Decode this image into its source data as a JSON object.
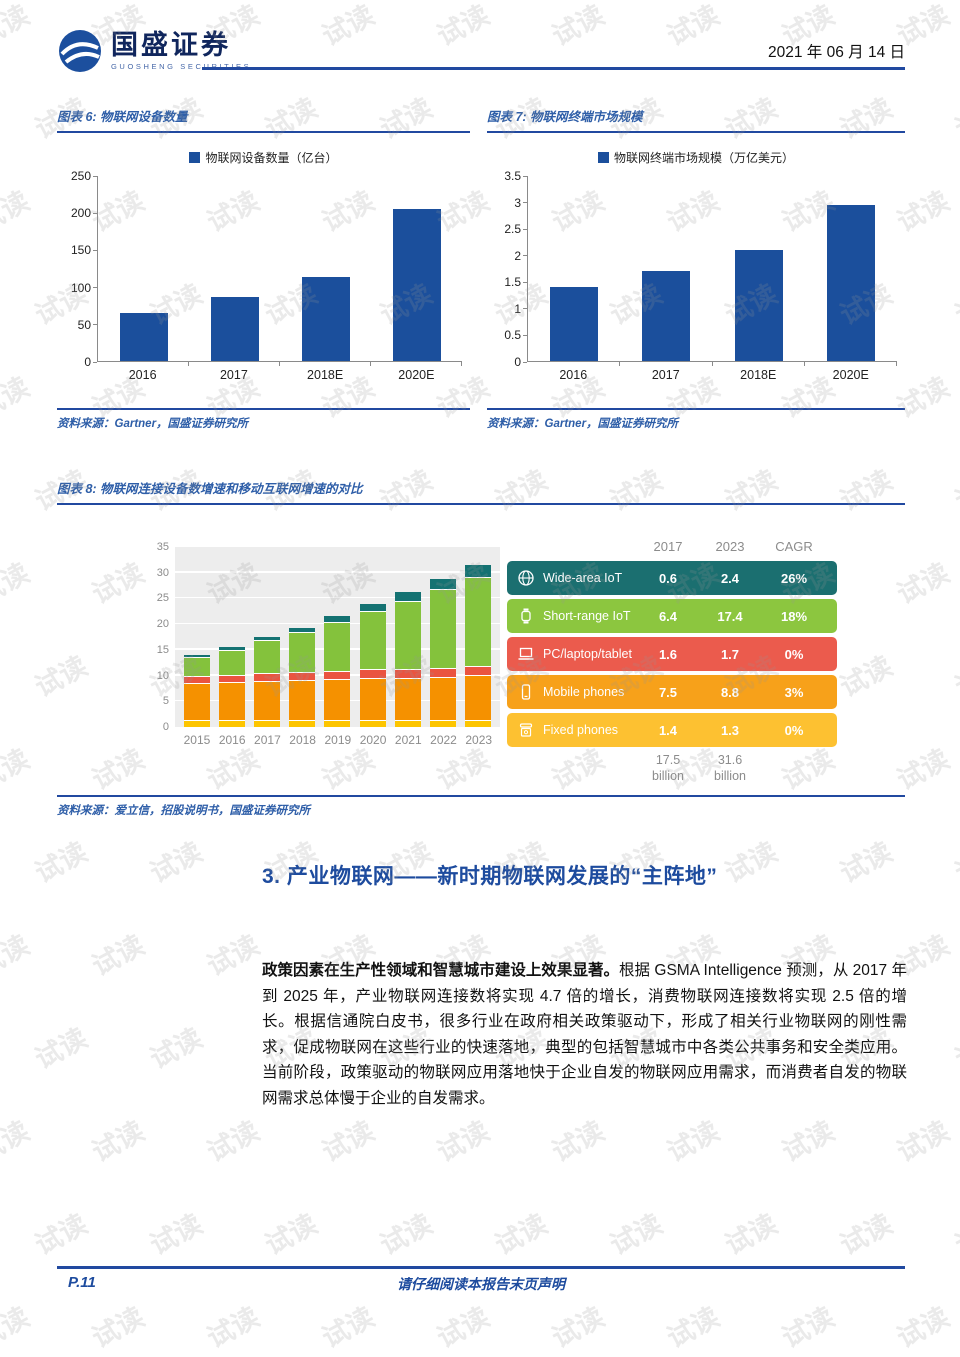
{
  "watermark": {
    "text": "试读"
  },
  "header": {
    "logo_cn": "国盛证券",
    "logo_en": "GUOSHENG SECURITIES",
    "date": "2021 年 06 月 14 日"
  },
  "fig6": {
    "caption": "图表 6: 物联网设备数量",
    "legend": "物联网设备数量（亿台）",
    "source": "资料来源：Gartner，国盛证券研究所"
  },
  "fig7": {
    "caption": "图表 7: 物联网终端市场规模",
    "legend": "物联网终端市场规模（万亿美元）",
    "source": "资料来源：Gartner，国盛证券研究所"
  },
  "fig8": {
    "caption": "图表 8: 物联网连接设备数增速和移动互联网增速的对比",
    "source": "资料来源：爱立信，招股说明书，国盛证券研究所"
  },
  "section": {
    "heading": "3. 产业物联网——新时期物联网发展的“主阵地”"
  },
  "paragraph": {
    "lead": "政策因素在生产性领域和智慧城市建设上效果显著。",
    "body": "根据 GSMA Intelligence 预测，从 2017 年到 2025 年，产业物联网连接数将实现 4.7 倍的增长，消费物联网连接数将实现 2.5 倍的增长。根据信通院白皮书，很多行业在政府相关政策驱动下，形成了相关行业物联网的刚性需求，促成物联网在这些行业的快速落地，典型的包括智慧城市中各类公共事务和安全类应用。当前阶段，政策驱动的物联网应用落地快于企业自发的物联网应用需求，而消费者自发的物联网需求总体慢于企业的自发需求。"
  },
  "footer": {
    "page": "P.11",
    "disclaimer": "请仔细阅读本报告末页声明"
  },
  "chart_data": [
    {
      "type": "bar",
      "title": "物联网设备数量",
      "legend": "物联网设备数量（亿台）",
      "categories": [
        "2016",
        "2017",
        "2018E",
        "2020E"
      ],
      "values": [
        65,
        86,
        114,
        205
      ],
      "ylim": [
        0,
        250
      ],
      "yticks": [
        0,
        50,
        100,
        150,
        200,
        250
      ],
      "bar_color": "#1B4F9C",
      "grid": false,
      "legend_position": "top"
    },
    {
      "type": "bar",
      "title": "物联网终端市场规模",
      "legend": "物联网终端市场规模（万亿美元）",
      "categories": [
        "2016",
        "2017",
        "2018E",
        "2020E"
      ],
      "values": [
        1.4,
        1.7,
        2.1,
        2.95
      ],
      "ylim": [
        0,
        3.5
      ],
      "yticks": [
        0,
        0.5,
        1,
        1.5,
        2,
        2.5,
        3,
        3.5
      ],
      "bar_color": "#1B4F9C",
      "grid": false,
      "legend_position": "top"
    },
    {
      "type": "stacked-bar",
      "title": "物联网连接设备数增速和移动互联网增速的对比",
      "categories": [
        "2015",
        "2016",
        "2017",
        "2018",
        "2019",
        "2020",
        "2021",
        "2022",
        "2023"
      ],
      "ylim": [
        0,
        35
      ],
      "yticks": [
        0,
        5,
        10,
        15,
        20,
        25,
        30,
        35
      ],
      "grid": true,
      "series": [
        {
          "name": "Fixed phones",
          "color": "#FDC500",
          "values": [
            1.4,
            1.4,
            1.4,
            1.4,
            1.4,
            1.4,
            1.3,
            1.3,
            1.3
          ]
        },
        {
          "name": "Mobile phones",
          "color": "#F59100",
          "values": [
            7.1,
            7.3,
            7.5,
            7.7,
            7.9,
            8.1,
            8.3,
            8.5,
            8.8
          ]
        },
        {
          "name": "PC/laptop/tablet",
          "color": "#EA5440",
          "values": [
            1.5,
            1.5,
            1.6,
            1.6,
            1.6,
            1.7,
            1.7,
            1.7,
            1.7
          ]
        },
        {
          "name": "Short-range IoT",
          "color": "#84C23C",
          "values": [
            3.7,
            4.8,
            6.4,
            7.8,
            9.5,
            11.3,
            13.2,
            15.3,
            17.4
          ]
        },
        {
          "name": "Wide-area IoT",
          "color": "#147272",
          "values": [
            0.4,
            0.5,
            0.6,
            0.8,
            1.1,
            1.4,
            1.7,
            2.0,
            2.4
          ]
        }
      ],
      "table": {
        "columns": [
          "2017",
          "2023",
          "CAGR"
        ],
        "rows": [
          {
            "name": "Wide-area IoT",
            "icon": "globe-icon",
            "color": "#1B6F70",
            "values": [
              "0.6",
              "2.4",
              "26%"
            ]
          },
          {
            "name": "Short-range IoT",
            "icon": "watch-icon",
            "color": "#8CC63F",
            "values": [
              "6.4",
              "17.4",
              "18%"
            ]
          },
          {
            "name": "PC/laptop/tablet",
            "icon": "laptop-icon",
            "color": "#EB5B4D",
            "values": [
              "1.6",
              "1.7",
              "0%"
            ]
          },
          {
            "name": "Mobile phones",
            "icon": "mobile-phone-icon",
            "color": "#F7A11A",
            "values": [
              "7.5",
              "8.8",
              "3%"
            ]
          },
          {
            "name": "Fixed phones",
            "icon": "fixed-phone-icon",
            "color": "#FDC131",
            "values": [
              "1.4",
              "1.3",
              "0%"
            ]
          }
        ],
        "totals": [
          "17.5 billion",
          "31.6 billion"
        ]
      }
    }
  ]
}
